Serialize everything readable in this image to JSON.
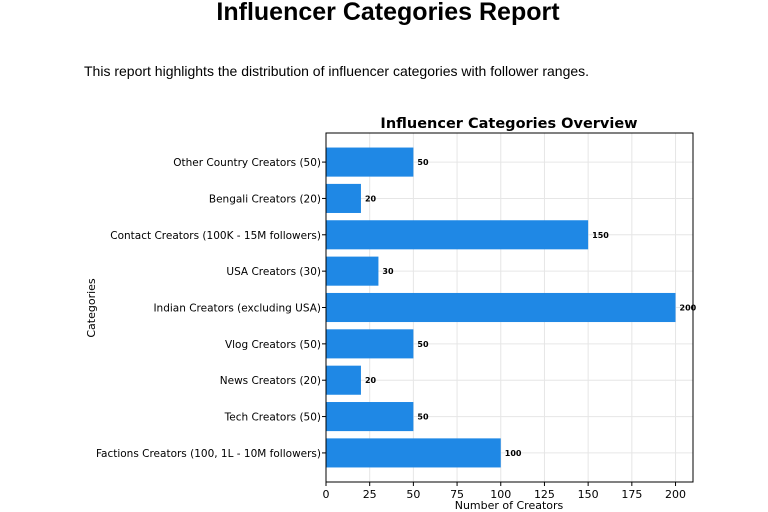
{
  "document": {
    "title": "Influencer Categories Report",
    "description": "This report highlights the distribution of influencer categories with follower ranges."
  },
  "chart_data": {
    "type": "bar",
    "orientation": "horizontal",
    "title": "Influencer Categories Overview",
    "xlabel": "Number of Creators",
    "ylabel": "Categories",
    "categories": [
      "Other Country Creators (50)",
      "Bengali Creators (20)",
      "Contact Creators (100K - 15M followers)",
      "USA Creators (30)",
      "Indian Creators (excluding USA)",
      "Vlog Creators (50)",
      "News Creators (20)",
      "Tech Creators (50)",
      "Factions Creators (100, 1L - 10M followers)"
    ],
    "values": [
      50,
      20,
      150,
      30,
      200,
      50,
      20,
      50,
      100
    ],
    "xlim": [
      0,
      210
    ],
    "xticks": [
      0,
      25,
      50,
      75,
      100,
      125,
      150,
      175,
      200
    ],
    "grid": true,
    "data_labels": true,
    "bar_color": "#1f88e5"
  }
}
